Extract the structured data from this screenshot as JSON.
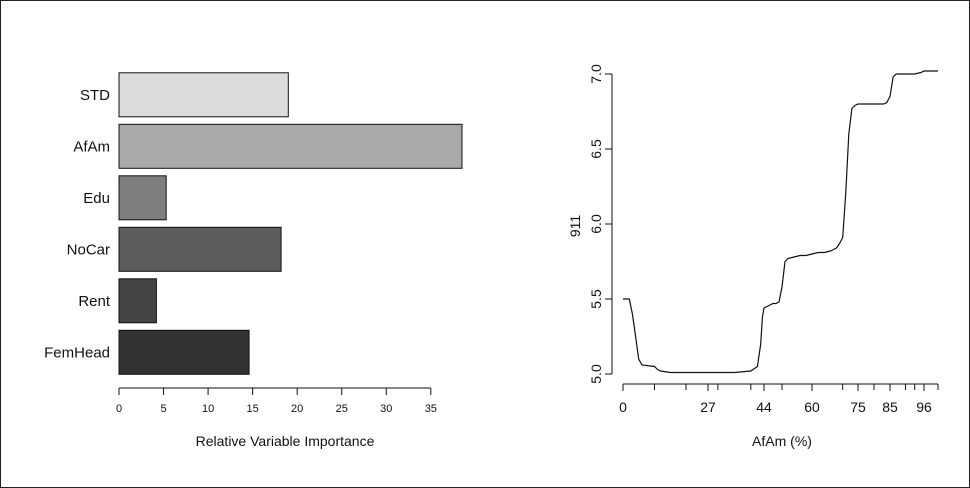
{
  "chart_data": [
    {
      "type": "bar",
      "orientation": "horizontal",
      "categories": [
        "STD",
        "AfAm",
        "Edu",
        "NoCar",
        "Rent",
        "FemHead"
      ],
      "values": [
        19,
        38.5,
        5.3,
        18.2,
        4.2,
        14.6
      ],
      "colors": [
        "#dcdcdc",
        "#a9a9a9",
        "#7f7f7f",
        "#5c5c5c",
        "#444444",
        "#333333"
      ],
      "xlabel": "Relative Variable Importance",
      "ylabel": "",
      "xlim": [
        0,
        38.5
      ],
      "xticks": [
        0,
        5,
        10,
        15,
        20,
        25,
        30,
        35
      ],
      "grid": false
    },
    {
      "type": "line",
      "xlabel": "AfAm (%)",
      "ylabel": "911",
      "ylim": [
        5.0,
        7.0
      ],
      "yticks": [
        5.0,
        5.5,
        6.0,
        6.5,
        7.0
      ],
      "xticks": [
        0,
        27,
        44,
        60,
        75,
        85,
        96
      ],
      "x_minor_ticks": [
        10,
        20,
        30,
        40,
        50,
        70,
        80,
        90,
        93,
        99
      ],
      "x_axis_note": "percentile-spaced axis",
      "grid": false,
      "series": [
        {
          "x": [
            0,
            2,
            3,
            4,
            5,
            6,
            10,
            11,
            12,
            15,
            20,
            27,
            35,
            40,
            42,
            43,
            43.5,
            44,
            45,
            46,
            47,
            48,
            49,
            50,
            51,
            52,
            54,
            56,
            58,
            60,
            62,
            64,
            66,
            67,
            68,
            69,
            70,
            71,
            72,
            73,
            74,
            75,
            76,
            77,
            80,
            83,
            84,
            85,
            86,
            87,
            88,
            90,
            92,
            93,
            95,
            96,
            97,
            98,
            99
          ],
          "values": [
            5.5,
            5.5,
            5.4,
            5.25,
            5.1,
            5.06,
            5.05,
            5.03,
            5.02,
            5.01,
            5.01,
            5.01,
            5.01,
            5.02,
            5.05,
            5.2,
            5.38,
            5.44,
            5.45,
            5.46,
            5.47,
            5.47,
            5.48,
            5.58,
            5.75,
            5.77,
            5.78,
            5.79,
            5.79,
            5.8,
            5.81,
            5.81,
            5.82,
            5.83,
            5.84,
            5.87,
            5.91,
            6.2,
            6.6,
            6.77,
            6.79,
            6.8,
            6.8,
            6.8,
            6.8,
            6.8,
            6.81,
            6.85,
            6.98,
            7.0,
            7.0,
            7.0,
            7.0,
            7.0,
            7.01,
            7.02,
            7.02,
            7.02,
            7.02
          ]
        }
      ]
    }
  ]
}
